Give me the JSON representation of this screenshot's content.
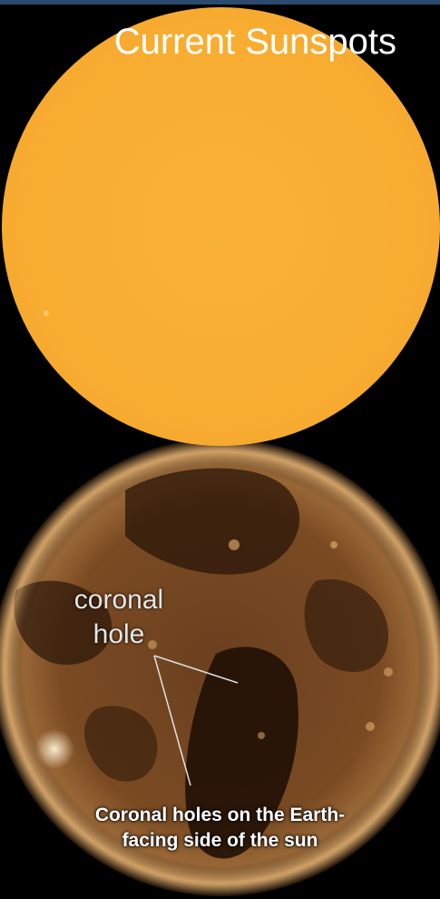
{
  "title": "Current Sunspots",
  "annotation": {
    "line1": "coronal",
    "line2": "hole"
  },
  "caption": {
    "line1": "Coronal holes on the Earth-",
    "line2": "facing side of the sun"
  },
  "colors": {
    "visible_sun": "#f8ad31",
    "euv_sun": "#8a5a2a",
    "background": "#000000",
    "top_border": "#2c4a6e"
  }
}
